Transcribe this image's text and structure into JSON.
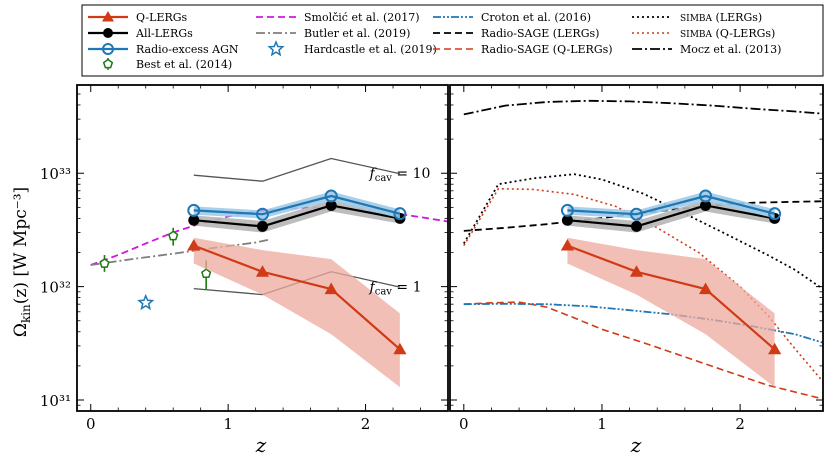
{
  "chart_data": {
    "type": "line",
    "ylabel": "Ω_kin(z) [W Mpc⁻³]",
    "xlabel": "z",
    "yscale": "log",
    "xlim": [
      -0.1,
      2.6
    ],
    "ylim": [
      8e+30,
      6e+33
    ],
    "xticks": [
      0,
      1,
      2
    ],
    "xtick_labels": [
      "0",
      "1",
      "2"
    ],
    "ytick_values": [
      1e+31,
      1e+32,
      1e+33
    ],
    "ytick_labels": [
      "10³¹",
      "10³²",
      "10³³"
    ],
    "annotations": [
      {
        "text": "f_cav = 10",
        "x": 2.0,
        "y": 1e+33
      },
      {
        "text": "f_cav = 1",
        "x": 2.0,
        "y": 1e+32
      }
    ],
    "legend": [
      {
        "key": "qlergs",
        "label": "Q-LERGs"
      },
      {
        "key": "alllergs",
        "label": "All-LERGs"
      },
      {
        "key": "radioexcess",
        "label": "Radio-excess AGN"
      },
      {
        "key": "best",
        "label": "Best et al. (2014)"
      },
      {
        "key": "smolcic",
        "label": "Smolčić et al. (2017)"
      },
      {
        "key": "butler",
        "label": "Butler et al. (2019)"
      },
      {
        "key": "hardcastle",
        "label": "Hardcastle et al. (2019)"
      },
      {
        "key": "croton",
        "label": "Croton et al. (2016)"
      },
      {
        "key": "rsage_lergs",
        "label": "Radio-SAGE (LERGs)"
      },
      {
        "key": "rsage_qlergs",
        "label": "Radio-SAGE (Q-LERGs)"
      },
      {
        "key": "simba_lergs",
        "label": "SIMBA (LERGs)"
      },
      {
        "key": "simba_qlergs",
        "label": "SIMBA (Q-LERGs)"
      },
      {
        "key": "mocz",
        "label": "Mocz et al. (2013)"
      }
    ],
    "colors": {
      "qlergs": "#d03b16",
      "qlergs_band": "#eeaa9d",
      "alllergs": "#000000",
      "alllergs_band": "#b6b6b6",
      "radioexcess": "#1f77b4",
      "radioexcess_band": "#9ecbe8",
      "best": "#1c7a10",
      "smolcic": "#d017e0",
      "butler": "#7f7f7f",
      "hardcastle": "#1f77b4",
      "croton": "#1f77b4",
      "rsage_lergs": "#000000",
      "rsage_qlergs": "#d03b16",
      "simba_lergs": "#000000",
      "simba_qlergs": "#d03b16",
      "mocz": "#000000",
      "fcav": "#555555"
    },
    "series": {
      "qlergs": {
        "x": [
          0.75,
          1.25,
          1.75,
          2.25
        ],
        "y": [
          2.3e+32,
          1.35e+32,
          9.5e+31,
          2.8e+31
        ],
        "lo": [
          1.6e+32,
          8.5e+31,
          3.8e+31,
          1.3e+31
        ],
        "hi": [
          2.7e+32,
          2.1e+32,
          1.75e+32,
          5.8e+31
        ]
      },
      "alllergs": {
        "x": [
          0.75,
          1.25,
          1.75,
          2.25
        ],
        "y": [
          3.85e+32,
          3.4e+32,
          5.2e+32,
          4e+32
        ],
        "lo": [
          3.45e+32,
          3e+32,
          4.6e+32,
          3.6e+32
        ],
        "hi": [
          4.25e+32,
          3.8e+32,
          5.8e+32,
          4.4e+32
        ]
      },
      "radioexcess": {
        "x": [
          0.75,
          1.25,
          1.75,
          2.25
        ],
        "y": [
          4.7e+32,
          4.35e+32,
          6.3e+32,
          4.4e+32
        ],
        "lo": [
          4.3e+32,
          4e+32,
          5.7e+32,
          4e+32
        ],
        "hi": [
          5.1e+32,
          4.7e+32,
          6.9e+32,
          4.8e+32
        ]
      },
      "best": {
        "x": [
          0.1,
          0.6,
          0.84
        ],
        "y": [
          1.6e+32,
          2.8e+32,
          1.3e+32
        ],
        "ylo": [
          1.35e+32,
          2.3e+32,
          9.5e+31
        ],
        "yhi": [
          1.9e+32,
          3.3e+32,
          1.7e+32
        ]
      },
      "smolcic": {
        "x": [
          0.0,
          0.2,
          0.4,
          0.6,
          0.8,
          1.0,
          1.2,
          1.4,
          1.6,
          1.8,
          2.0,
          2.2,
          2.4,
          2.6
        ],
        "y": [
          1.55e+32,
          1.9e+32,
          2.4e+32,
          3e+32,
          3.6e+32,
          4.15e+32,
          4.6e+32,
          4.85e+32,
          5e+32,
          4.95e+32,
          4.75e+32,
          4.45e+32,
          4.1e+32,
          3.75e+32
        ]
      },
      "butler": {
        "x": [
          0.0,
          0.3,
          0.6,
          0.9,
          1.2,
          1.3
        ],
        "y": [
          1.55e+32,
          1.75e+32,
          1.95e+32,
          2.2e+32,
          2.45e+32,
          2.6e+32
        ]
      },
      "hardcastle": {
        "x": [
          0.4
        ],
        "y": [
          7.2e+31
        ]
      },
      "fcav10": {
        "x": [
          0.75,
          1.25,
          1.75,
          2.25
        ],
        "y": [
          9.6e+32,
          8.5e+32,
          1.35e+33,
          9.9e+32
        ]
      },
      "fcav1": {
        "x": [
          0.75,
          1.25,
          1.75,
          2.25
        ],
        "y": [
          9.6e+31,
          8.5e+31,
          1.35e+32,
          9.9e+31
        ]
      },
      "croton": {
        "x": [
          0.0,
          0.3,
          0.6,
          0.9,
          1.2,
          1.5,
          1.8,
          2.1,
          2.4,
          2.6
        ],
        "y": [
          7e+31,
          7.05e+31,
          7e+31,
          6.7e+31,
          6.2e+31,
          5.7e+31,
          5.1e+31,
          4.45e+31,
          3.8e+31,
          3.2e+31
        ]
      },
      "rsage_lergs": {
        "x": [
          0.0,
          0.3,
          0.6,
          0.9,
          1.2,
          1.5,
          1.8,
          2.1,
          2.4,
          2.6
        ],
        "y": [
          3.1e+32,
          3.3e+32,
          3.55e+32,
          3.9e+32,
          4.3e+32,
          4.75e+32,
          5.2e+32,
          5.5e+32,
          5.6e+32,
          5.65e+32
        ]
      },
      "rsage_qlergs": {
        "x": [
          0.0,
          0.2,
          0.4,
          0.6,
          0.8,
          1.0,
          1.3,
          1.6,
          1.9,
          2.2,
          2.6
        ],
        "y": [
          7e+31,
          7.2e+31,
          7.3e+31,
          6.6e+31,
          5.3e+31,
          4.2e+31,
          3.2e+31,
          2.4e+31,
          1.8e+31,
          1.35e+31,
          1.02e+31
        ]
      },
      "simba_lergs": {
        "x": [
          0.0,
          0.25,
          0.5,
          0.8,
          1.0,
          1.3,
          1.6,
          1.9,
          2.2,
          2.4,
          2.6
        ],
        "y": [
          2.4e+32,
          8e+32,
          9e+32,
          9.8e+32,
          8.8e+32,
          6.6e+32,
          4.4e+32,
          2.9e+32,
          1.9e+32,
          1.4e+32,
          9.5e+31
        ]
      },
      "simba_qlergs": {
        "x": [
          0.0,
          0.25,
          0.5,
          0.8,
          1.1,
          1.4,
          1.7,
          2.0,
          2.2,
          2.4,
          2.6
        ],
        "y": [
          2.3e+32,
          7.3e+32,
          7.2e+32,
          6.5e+32,
          5.1e+32,
          3.3e+32,
          2e+32,
          1e+32,
          5.6e+31,
          2.8e+31,
          1.45e+31
        ]
      },
      "mocz": {
        "x": [
          0.0,
          0.3,
          0.6,
          0.9,
          1.2,
          1.5,
          1.8,
          2.1,
          2.4,
          2.6
        ],
        "y": [
          3.3e+33,
          3.95e+33,
          4.25e+33,
          4.35e+33,
          4.3e+33,
          4.15e+33,
          3.95e+33,
          3.7e+33,
          3.5e+33,
          3.35e+33
        ]
      }
    },
    "panels": [
      {
        "name": "left",
        "series": [
          "smolcic",
          "butler",
          "best",
          "hardcastle",
          "fcav10",
          "fcav1",
          "qlergs",
          "alllergs",
          "radioexcess"
        ],
        "show_ylabels": true
      },
      {
        "name": "right",
        "series": [
          "mocz",
          "simba_lergs",
          "simba_qlergs",
          "rsage_lergs",
          "rsage_qlergs",
          "croton",
          "qlergs",
          "alllergs",
          "radioexcess"
        ],
        "show_ylabels": false
      }
    ]
  }
}
